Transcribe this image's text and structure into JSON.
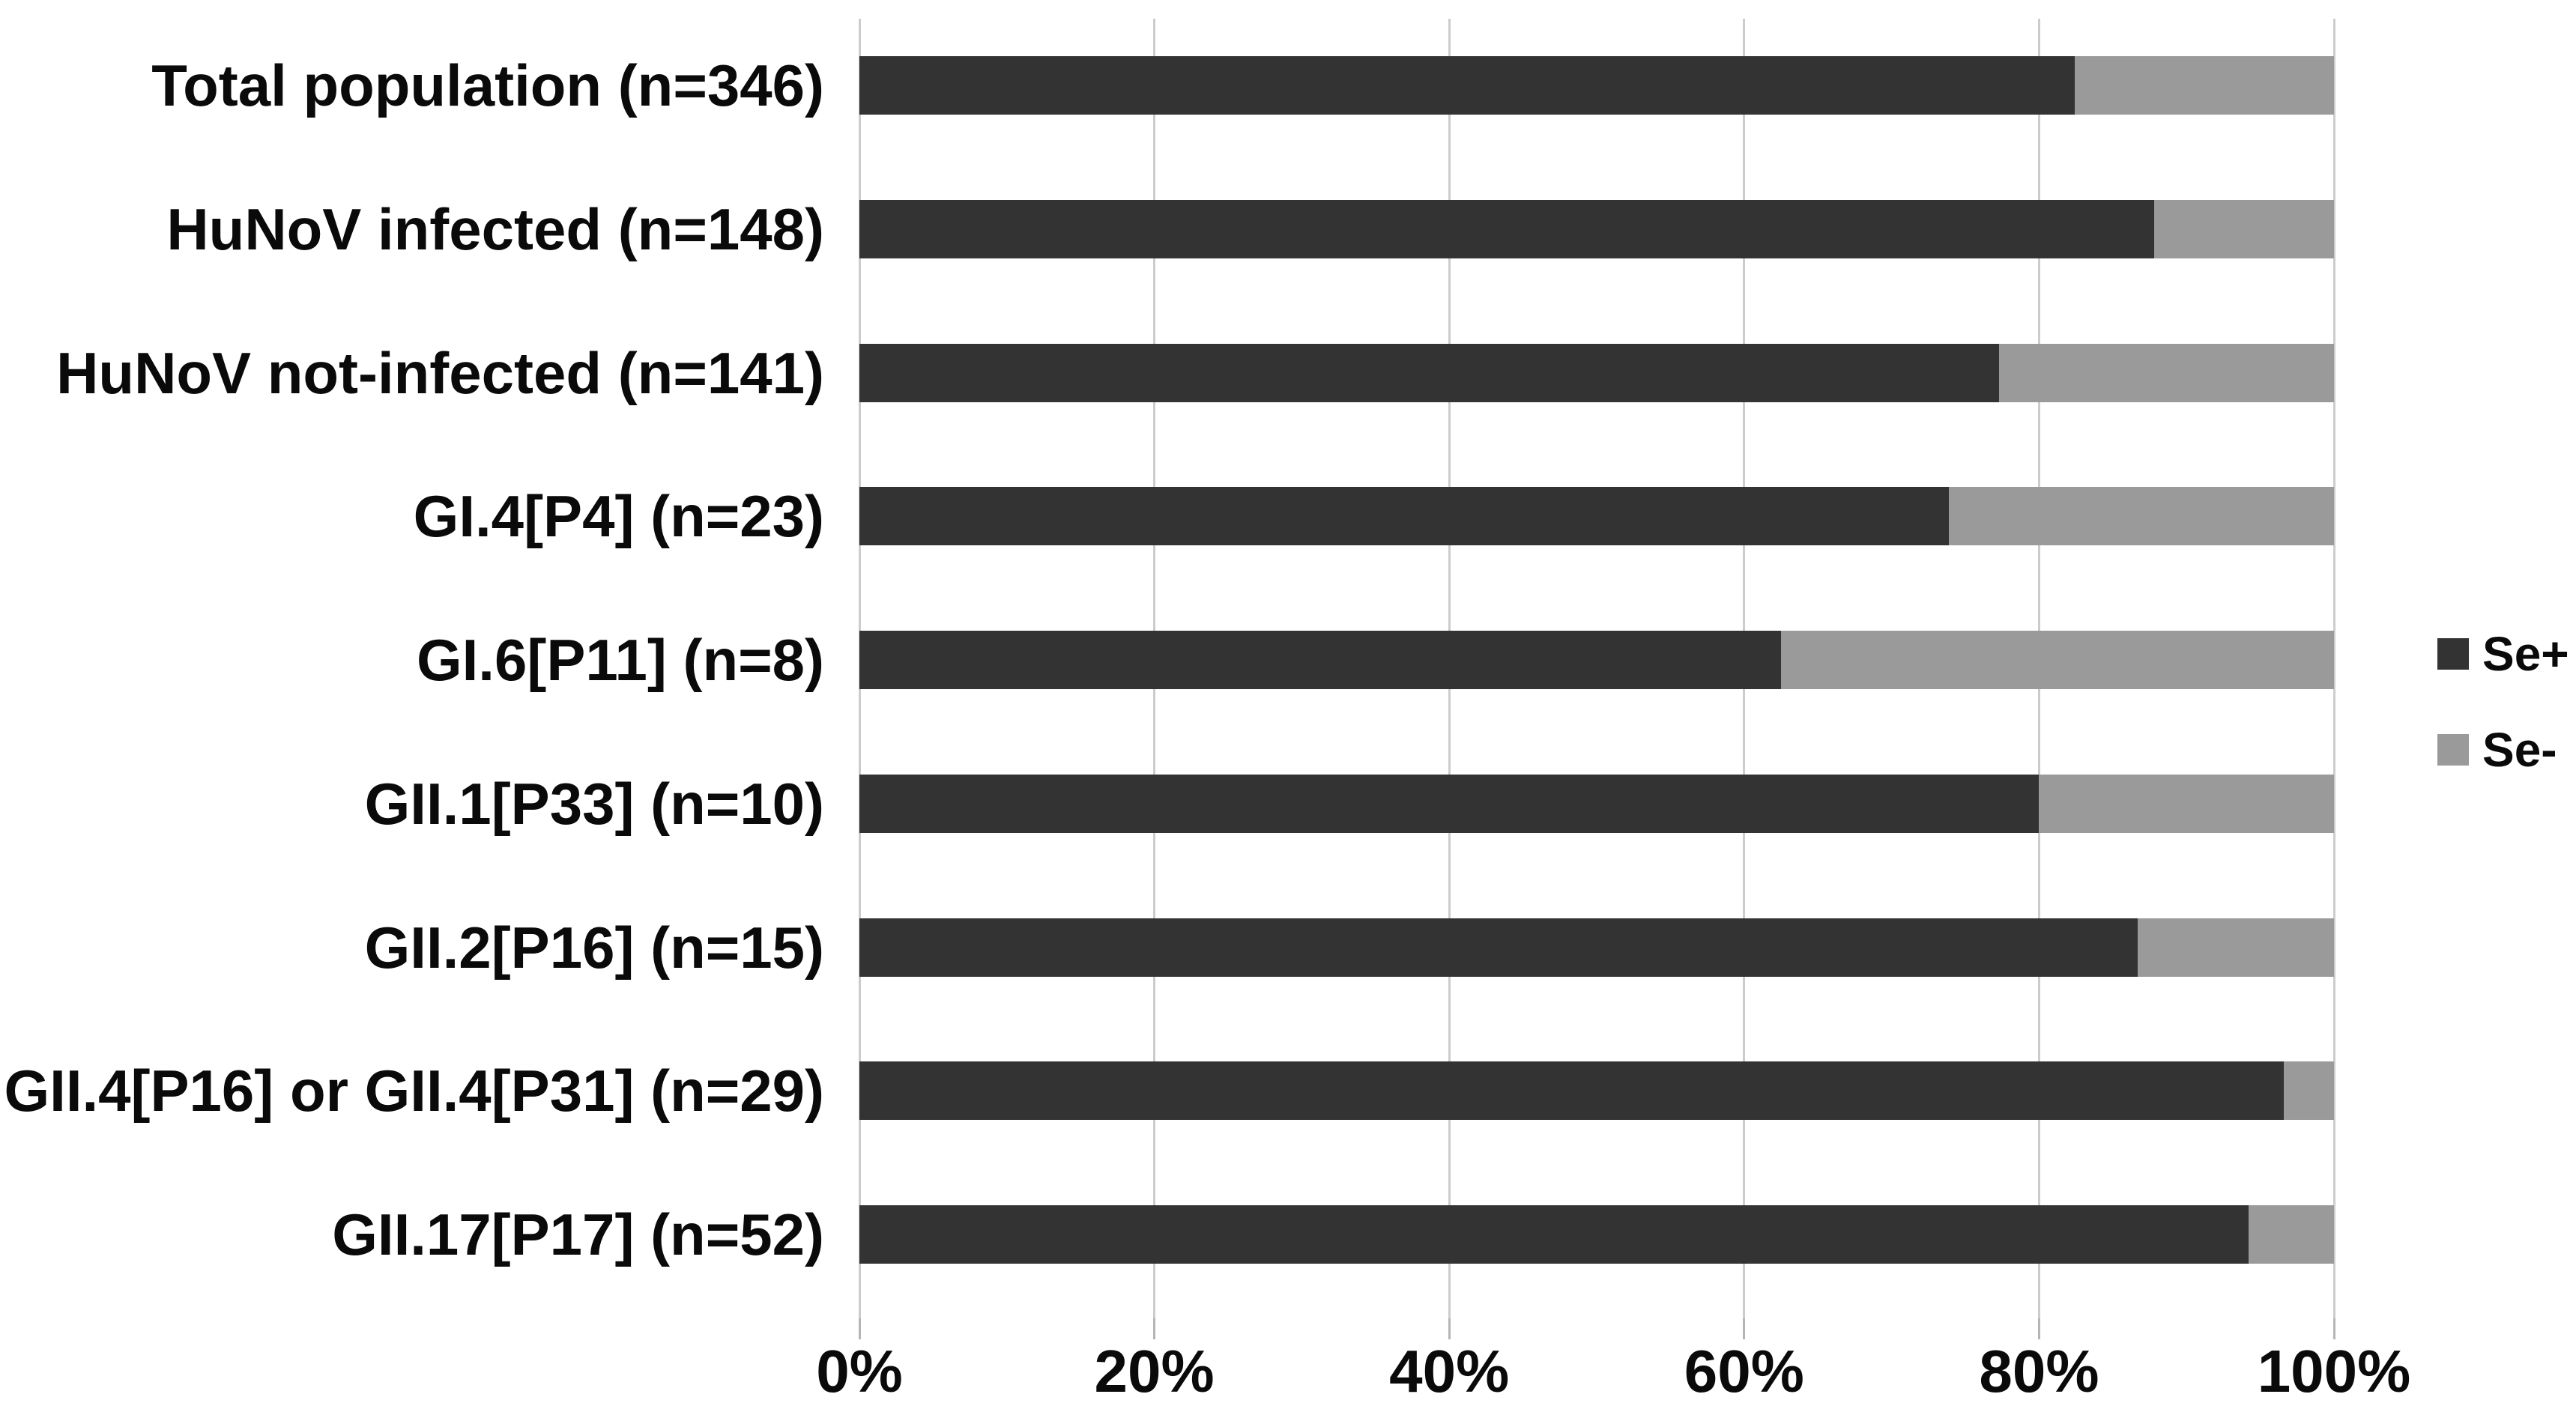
{
  "chart_data": {
    "type": "bar",
    "orientation": "horizontal",
    "stacked": true,
    "unit": "percent",
    "categories": [
      "Total population (n=346)",
      "HuNoV infected (n=148)",
      "HuNoV not-infected (n=141)",
      "GI.4[P4] (n=23)",
      "GI.6[P11] (n=8)",
      "GII.1[P33] (n=10)",
      "GII.2[P16] (n=15)",
      "GII.4[P16] or GII.4[P31] (n=29)",
      "GII.17[P17] (n=52)"
    ],
    "series": [
      {
        "name": "Se+",
        "color": "#333333",
        "values": [
          82.4,
          87.8,
          77.3,
          73.9,
          62.5,
          80.0,
          86.7,
          96.6,
          94.2
        ]
      },
      {
        "name": "Se-",
        "color": "#9a9a9a",
        "values": [
          17.6,
          12.2,
          22.7,
          26.1,
          37.5,
          20.0,
          13.3,
          3.4,
          5.8
        ]
      }
    ],
    "x_axis": {
      "min": 0,
      "max": 100,
      "tick_labels": [
        "0%",
        "20%",
        "40%",
        "60%",
        "80%",
        "100%"
      ],
      "grid": true
    },
    "legend": {
      "position": "right",
      "entries": [
        "Se+",
        "Se-"
      ]
    },
    "colors": {
      "se_positive": "#333333",
      "se_negative": "#9a9a9a",
      "gridline": "#cccccc",
      "text": "#0a0a0a",
      "background": "#ffffff"
    }
  }
}
